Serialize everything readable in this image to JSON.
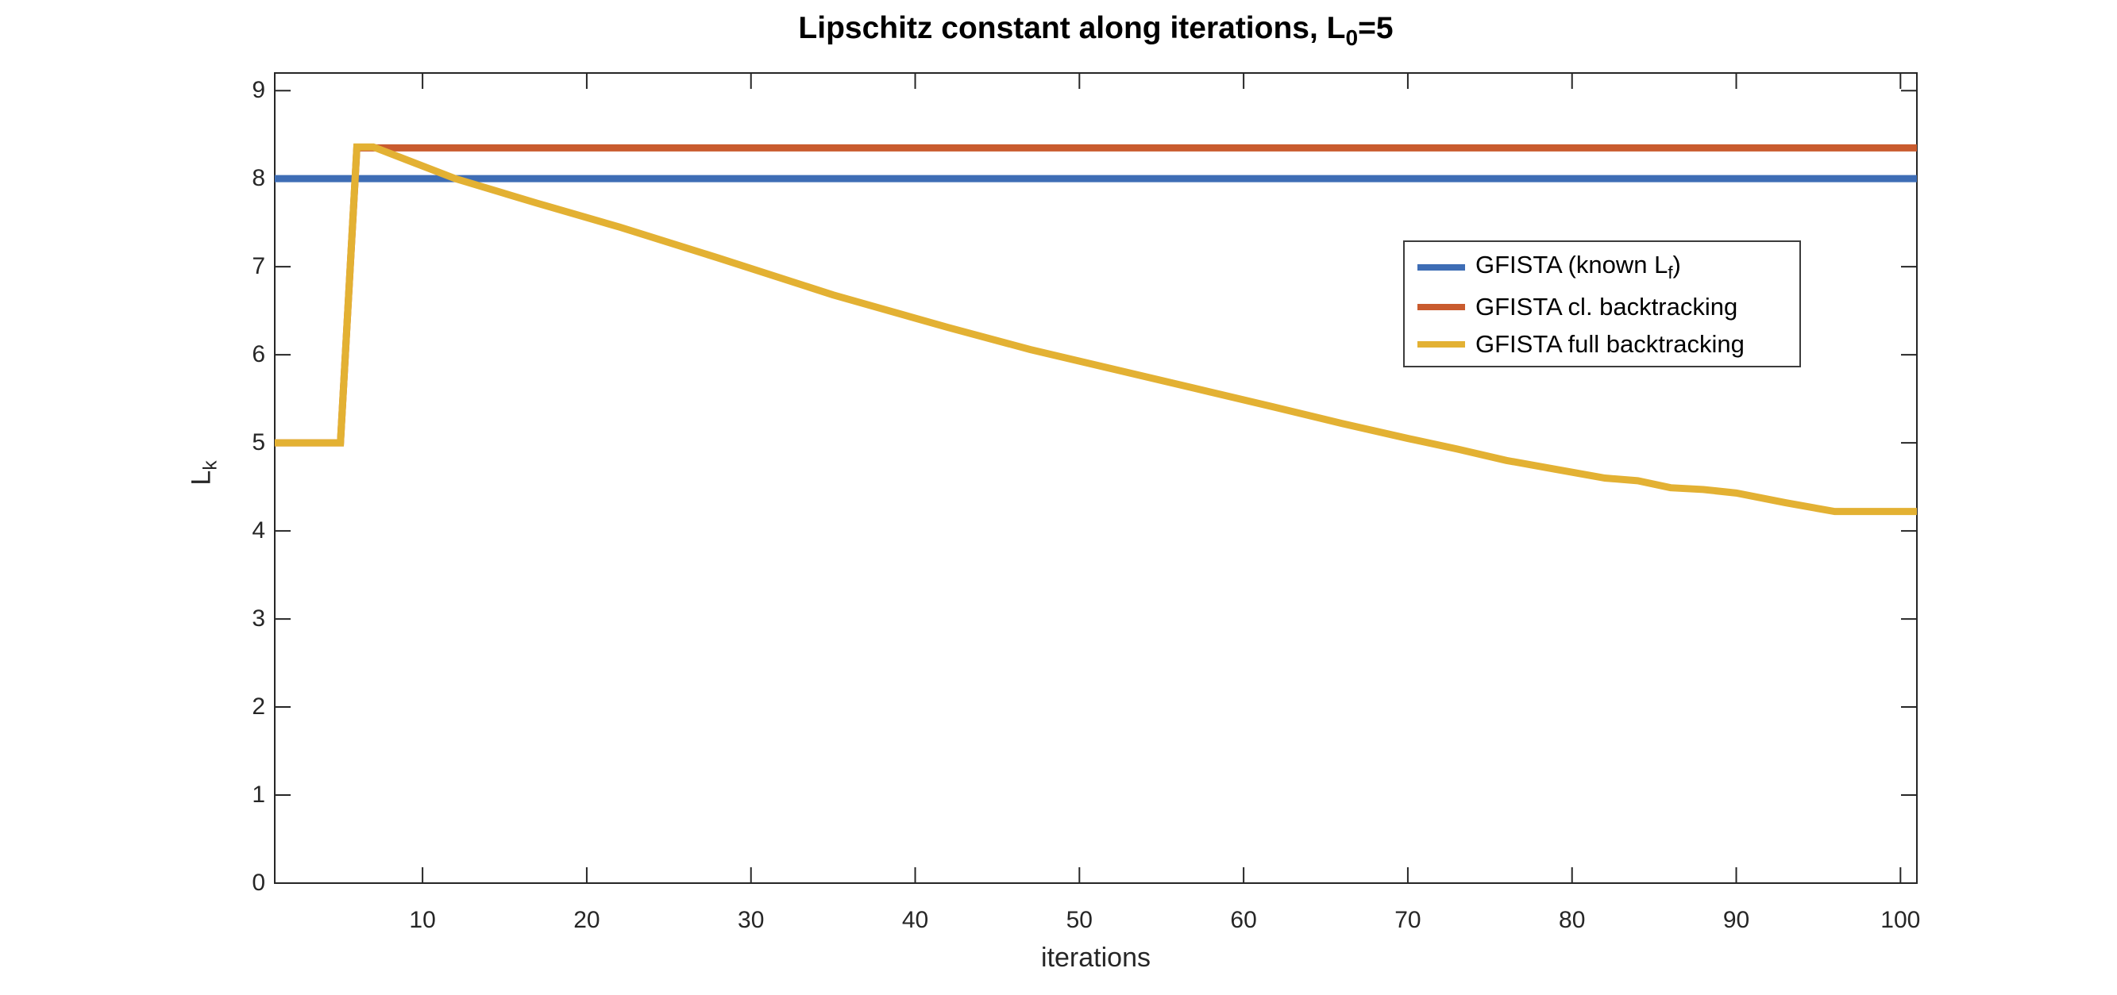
{
  "chart_data": {
    "type": "line",
    "title": "Lipschitz constant along iterations, L0=5",
    "title_parts": [
      {
        "t": "Lipschitz constant along iterations, L"
      },
      {
        "s": "0"
      },
      {
        "t": "=5"
      }
    ],
    "xlabel": "iterations",
    "ylabel": "Lk",
    "ylabel_parts": [
      {
        "t": "L"
      },
      {
        "s": "k"
      }
    ],
    "xlim": [
      1,
      101
    ],
    "ylim": [
      0,
      9.2
    ],
    "xticks": [
      10,
      20,
      30,
      40,
      50,
      60,
      70,
      80,
      90,
      100
    ],
    "yticks": [
      0,
      1,
      2,
      3,
      4,
      5,
      6,
      7,
      8,
      9
    ],
    "grid": false,
    "axis_color": "#262626",
    "background_color": "#ffffff",
    "legend": {
      "position": "upper-right-inside",
      "border_color": "#3c3c3c"
    },
    "series": [
      {
        "name": "GFISTA (known Lf)",
        "label_parts": [
          {
            "t": "GFISTA (known L"
          },
          {
            "s": "f"
          },
          {
            "t": ")"
          }
        ],
        "color": "#3E6DB5",
        "points": [
          [
            1,
            8
          ],
          [
            101,
            8
          ]
        ]
      },
      {
        "name": "GFISTA cl. backtracking",
        "label_parts": [
          {
            "t": "GFISTA cl. backtracking"
          }
        ],
        "color": "#C95B2E",
        "points": [
          [
            1,
            5
          ],
          [
            5,
            5
          ],
          [
            6,
            8.35
          ],
          [
            101,
            8.35
          ]
        ]
      },
      {
        "name": "GFISTA full backtracking",
        "label_parts": [
          {
            "t": "GFISTA full backtracking"
          }
        ],
        "color": "#E3B133",
        "points": [
          [
            1,
            5
          ],
          [
            5,
            5
          ],
          [
            6,
            8.36
          ],
          [
            7,
            8.36
          ],
          [
            12,
            8.0
          ],
          [
            17,
            7.72
          ],
          [
            22,
            7.45
          ],
          [
            28,
            7.1
          ],
          [
            35,
            6.68
          ],
          [
            42,
            6.31
          ],
          [
            47,
            6.06
          ],
          [
            52,
            5.84
          ],
          [
            57,
            5.62
          ],
          [
            62,
            5.4
          ],
          [
            66,
            5.22
          ],
          [
            70,
            5.05
          ],
          [
            73,
            4.93
          ],
          [
            76,
            4.8
          ],
          [
            79,
            4.7
          ],
          [
            82,
            4.6
          ],
          [
            84,
            4.57
          ],
          [
            86,
            4.49
          ],
          [
            88,
            4.47
          ],
          [
            90,
            4.43
          ],
          [
            93,
            4.32
          ],
          [
            96,
            4.22
          ],
          [
            101,
            4.22
          ]
        ]
      }
    ]
  }
}
